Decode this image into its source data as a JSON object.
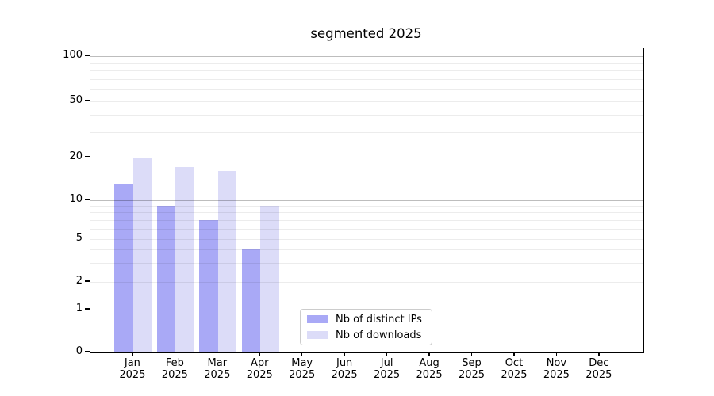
{
  "chart_data": {
    "type": "bar",
    "title": "segmented 2025",
    "categories": [
      "Jan",
      "Feb",
      "Mar",
      "Apr",
      "May",
      "Jun",
      "Jul",
      "Aug",
      "Sep",
      "Oct",
      "Nov",
      "Dec"
    ],
    "category_sub_label": "2025",
    "series": [
      {
        "name": "Nb of distinct IPs",
        "color": "#a9a9f6",
        "values": [
          13,
          9,
          7,
          4,
          0,
          0,
          0,
          0,
          0,
          0,
          0,
          0
        ]
      },
      {
        "name": "Nb of downloads",
        "color": "#dcdcf8",
        "values": [
          20,
          17,
          16,
          9,
          0,
          0,
          0,
          0,
          0,
          0,
          0,
          0
        ]
      }
    ],
    "xlabel": "",
    "ylabel": "",
    "y_ticks": [
      0,
      1,
      2,
      5,
      10,
      20,
      50,
      100
    ],
    "y_minor_gridlines": [
      2,
      3,
      4,
      5,
      6,
      7,
      8,
      9,
      20,
      30,
      40,
      50,
      60,
      70,
      80,
      90
    ],
    "y_major_gridlines": [
      1,
      10,
      100
    ],
    "y_scale": "log-like (segmented: linear 0-1, logarithmic above)",
    "ylim": [
      0,
      113
    ],
    "grid": true,
    "legend_position": "lower center, inside plot",
    "colors": {
      "axis": "#000000",
      "major_grid": "#bdbdbd",
      "minor_grid": "#ebebeb",
      "background": "#ffffff"
    }
  }
}
